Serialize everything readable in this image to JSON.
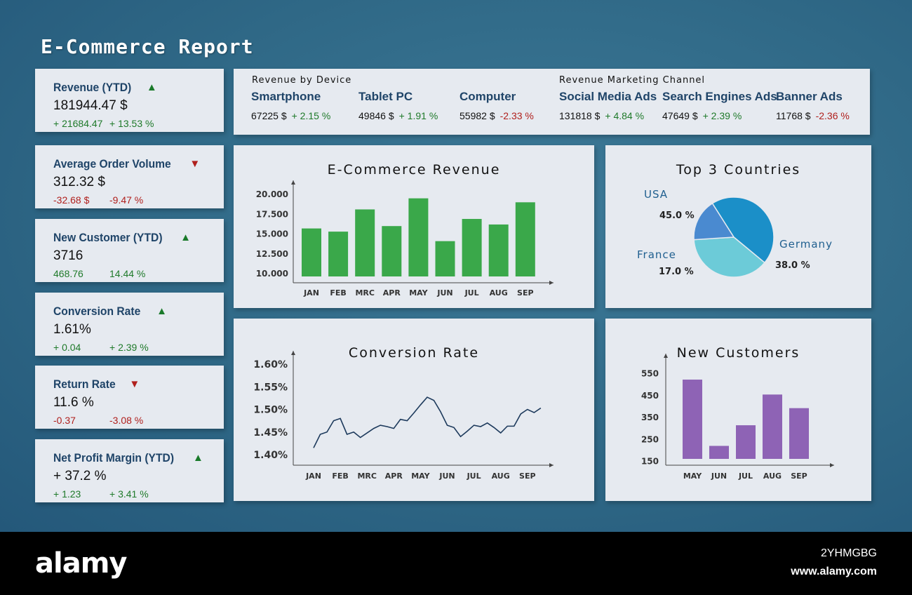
{
  "title": "E-Commerce Report",
  "kpis": [
    {
      "title": "Revenue (YTD)",
      "direction": "up",
      "value": "181944.47 $",
      "delta_abs": "+ 21684.47",
      "delta_pct": "+ 13.53 %",
      "sign": "pos"
    },
    {
      "title": "Average Order Volume",
      "direction": "down",
      "value": "312.32 $",
      "delta_abs": "-32.68 $",
      "delta_pct": "-9.47 %",
      "sign": "neg"
    },
    {
      "title": "New Customer (YTD)",
      "direction": "up",
      "value": "3716",
      "delta_abs": "468.76",
      "delta_pct": "14.44 %",
      "sign": "pos"
    },
    {
      "title": "Conversion Rate",
      "direction": "up",
      "value": "1.61%",
      "delta_abs": "+ 0.04",
      "delta_pct": "+ 2.39 %",
      "sign": "pos"
    },
    {
      "title": "Return Rate",
      "direction": "down",
      "value": "11.6 %",
      "delta_abs": "-0.37",
      "delta_pct": "-3.08 %",
      "sign": "neg"
    },
    {
      "title": "Net Profit Margin (YTD)",
      "direction": "up",
      "value": "+ 37.2 %",
      "delta_abs": "+ 1.23",
      "delta_pct": "+ 3.41 %",
      "sign": "pos"
    }
  ],
  "strip": {
    "device_heading": "Revenue by Device",
    "channel_heading": "Revenue  Marketing Channel",
    "items": [
      {
        "name": "Smartphone",
        "value": "67225 $",
        "change": "+ 2.15 %",
        "sign": "pos"
      },
      {
        "name": "Tablet PC",
        "value": "49846 $",
        "change": "+ 1.91 %",
        "sign": "pos"
      },
      {
        "name": "Computer",
        "value": "55982 $",
        "change": "-2.33 %",
        "sign": "neg"
      },
      {
        "name": "Social Media Ads",
        "value": "131818 $",
        "change": "+ 4.84 %",
        "sign": "pos"
      },
      {
        "name": "Search Engines Ads",
        "value": "47649 $",
        "change": "+ 2.39 %",
        "sign": "pos"
      },
      {
        "name": "Banner Ads",
        "value": "11768 $",
        "change": "-2.36 %",
        "sign": "neg"
      }
    ]
  },
  "colors": {
    "pos": "#1f7a2a",
    "neg": "#b0201d",
    "bar_green": "#3aa84a",
    "bar_purple": "#8e63b5",
    "line": "#1d3a5c",
    "pie_usa": "#1b8fc8",
    "pie_germany": "#6ccbd8",
    "pie_france": "#4a8ad0"
  },
  "chart_data": [
    {
      "id": "revenue",
      "type": "bar",
      "title": "E-Commerce Revenue",
      "categories": [
        "JAN",
        "FEB",
        "MRC",
        "APR",
        "MAY",
        "JUN",
        "JUL",
        "AUG",
        "SEP"
      ],
      "values": [
        15700,
        15300,
        18100,
        16000,
        19500,
        14100,
        16900,
        16200,
        19000
      ],
      "ylim": [
        10000,
        20000
      ],
      "yticks": [
        10000,
        12500,
        15000,
        17500,
        20000
      ],
      "ytick_labels": [
        "10.000",
        "12.500",
        "15.000",
        "17.500",
        "20.000"
      ]
    },
    {
      "id": "countries",
      "type": "pie",
      "title": "Top 3 Countries",
      "labels": [
        "USA",
        "Germany",
        "France"
      ],
      "values": [
        45.0,
        38.0,
        17.0
      ],
      "value_labels": [
        "45.0 %",
        "38.0 %",
        "17.0 %"
      ]
    },
    {
      "id": "conversion",
      "type": "line",
      "title": "Conversion Rate",
      "categories": [
        "JAN",
        "FEB",
        "MRC",
        "APR",
        "MAY",
        "JUN",
        "JUL",
        "AUG",
        "SEP"
      ],
      "x": [
        0,
        0.25,
        0.5,
        0.75,
        1,
        1.25,
        1.5,
        1.75,
        2,
        2.25,
        2.5,
        2.75,
        3,
        3.25,
        3.5,
        3.75,
        4,
        4.25,
        4.5,
        4.75,
        5,
        5.25,
        5.5,
        5.75,
        6,
        6.25,
        6.5,
        6.75,
        7,
        7.25,
        7.5,
        7.75,
        8,
        8.25,
        8.5
      ],
      "values": [
        1.415,
        1.445,
        1.45,
        1.475,
        1.48,
        1.445,
        1.45,
        1.438,
        1.448,
        1.458,
        1.465,
        1.462,
        1.458,
        1.478,
        1.475,
        1.492,
        1.51,
        1.527,
        1.52,
        1.495,
        1.465,
        1.46,
        1.44,
        1.452,
        1.465,
        1.462,
        1.47,
        1.46,
        1.448,
        1.463,
        1.463,
        1.49,
        1.5,
        1.493,
        1.503
      ],
      "ylim": [
        1.4,
        1.6
      ],
      "yticks": [
        1.4,
        1.45,
        1.5,
        1.55,
        1.6
      ],
      "ytick_labels": [
        "1.40%",
        "1.45%",
        "1.50%",
        "1.55%",
        "1.60%"
      ]
    },
    {
      "id": "customers",
      "type": "bar",
      "title": "New Customers",
      "categories": [
        "MAY",
        "JUN",
        "JUL",
        "AUG",
        "SEP"
      ],
      "values": [
        520,
        218,
        312,
        452,
        390
      ],
      "ylim": [
        130,
        600
      ],
      "yticks": [
        150,
        250,
        350,
        450,
        550
      ],
      "ytick_labels": [
        "150",
        "250",
        "350",
        "450",
        "550"
      ]
    }
  ],
  "footer": {
    "logo": "alamy",
    "image_id": "2YHMGBG",
    "url": "www.alamy.com"
  }
}
